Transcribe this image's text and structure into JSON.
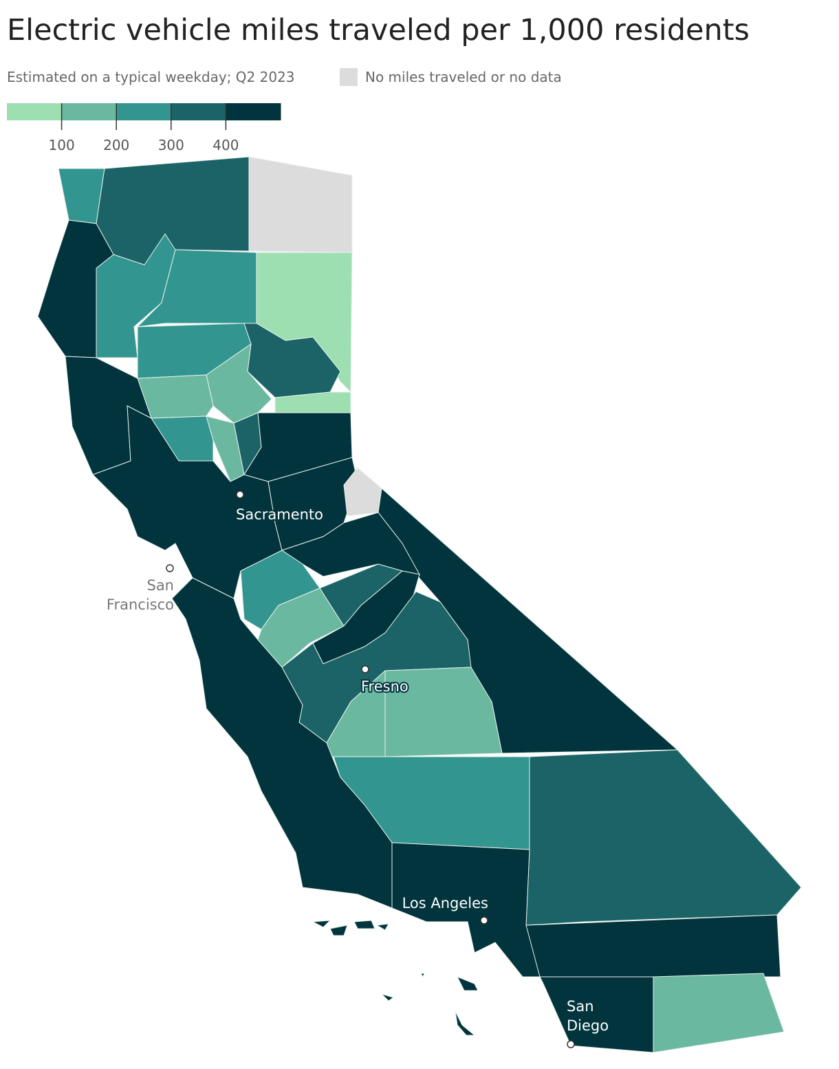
{
  "header": {
    "title": "Electric vehicle miles traveled per 1,000 residents",
    "subtitle": "Estimated on a typical weekday; Q2 2023",
    "no_data_label": "No miles traveled or no data",
    "no_data_color": "#dcdcdc"
  },
  "legend": {
    "colors": [
      "#9ddfb1",
      "#6bb8a0",
      "#339590",
      "#1b6366",
      "#02343d"
    ],
    "ticks": [
      100,
      200,
      300,
      400
    ]
  },
  "cities": [
    {
      "lines": [
        "Sacramento"
      ],
      "halo": "dark"
    },
    {
      "lines": [
        "San",
        "Francisco"
      ],
      "halo": "light"
    },
    {
      "lines": [
        "Fresno"
      ],
      "halo": "dark"
    },
    {
      "lines": [
        "Los Angeles"
      ],
      "halo": "dark"
    },
    {
      "lines": [
        "San",
        "Diego"
      ],
      "halo": "dark"
    }
  ]
}
